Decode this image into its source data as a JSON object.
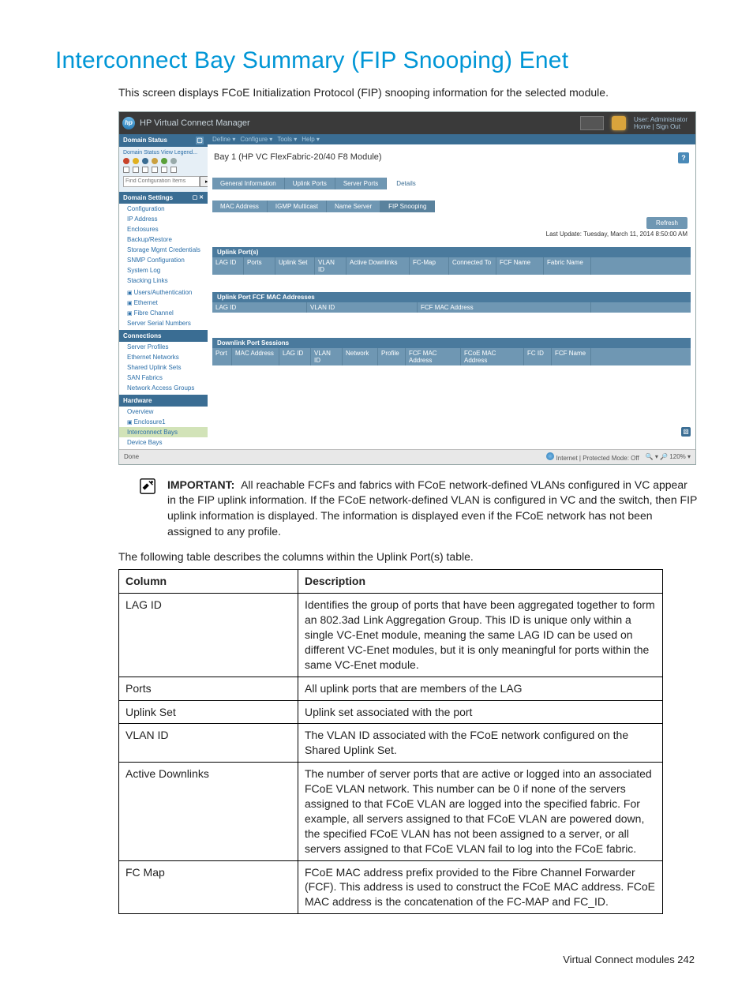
{
  "page": {
    "heading": "Interconnect Bay Summary (FIP Snooping) Enet",
    "intro": "This screen displays FCoE Initialization Protocol (FIP) snooping information for the selected module.",
    "post_intro": "The following table describes the columns within the Uplink Port(s) table.",
    "footer": "Virtual Connect modules   242"
  },
  "colors": {
    "heading": "#0096d6",
    "hp_blue": "#3a6d93",
    "tab_blue": "#6f97b3",
    "sidebar_link": "#2a6ea8"
  },
  "shot": {
    "app_title": "HP Virtual Connect Manager",
    "user_line1": "User: Administrator",
    "user_line2": "Home  |  Sign Out",
    "menus": [
      "Define ▾",
      "Configure ▾",
      "Tools ▾",
      "Help ▾"
    ],
    "bay_title": "Bay 1 (HP VC FlexFabric-20/40 F8 Module)",
    "tabs": [
      "General Information",
      "Uplink Ports",
      "Server Ports"
    ],
    "tab_plain": "Details",
    "subtabs": [
      "MAC Address",
      "IGMP Multicast",
      "Name Server",
      "FIP Snooping"
    ],
    "subtab_active_index": 3,
    "refresh_label": "Refresh",
    "last_update": "Last Update: Tuesday, March 11, 2014 8:50:00 AM",
    "section1_title": "Uplink Port(s)",
    "section1_cols": [
      "LAG ID",
      "Ports",
      "Uplink Set",
      "VLAN ID",
      "Active Downlinks",
      "FC-Map",
      "Connected To",
      "FCF Name",
      "Fabric Name"
    ],
    "section1_widths": [
      40,
      40,
      50,
      40,
      80,
      50,
      60,
      60,
      60
    ],
    "section2_title": "Uplink Port FCF MAC Addresses",
    "section2_cols": [
      "LAG ID",
      "VLAN ID",
      "FCF MAC Address"
    ],
    "section2_widths": [
      120,
      140,
      220
    ],
    "section3_title": "Downlink Port Sessions",
    "section3_cols": [
      "Port",
      "MAC Address",
      "LAG ID",
      "VLAN ID",
      "Network",
      "Profile",
      "FCF MAC Address",
      "FCoE MAC Address",
      "FC ID",
      "FCF Name"
    ],
    "section3_widths": [
      25,
      60,
      40,
      40,
      45,
      35,
      70,
      80,
      35,
      50
    ],
    "status_left": "Done",
    "status_mid": "Internet | Protected Mode: Off",
    "status_right": "🔍 ▾   🔎 120%  ▾",
    "sidebar": {
      "s1_title": "Domain Status",
      "legend_link": "Domain Status   View Legend...",
      "search_placeholder": "Find Configuration Items",
      "s2_title": "Domain Settings",
      "s2_items": [
        "Configuration",
        "IP Address",
        "Enclosures",
        "Backup/Restore",
        "Storage Mgmt Credentials",
        "SNMP Configuration",
        "System Log",
        "Stacking Links"
      ],
      "s3_items_icon": [
        "Users/Authentication",
        "Ethernet",
        "Fibre Channel"
      ],
      "s3_item_plain": "Server Serial Numbers",
      "s4_title": "Connections",
      "s4_items": [
        "Server Profiles",
        "Ethernet Networks",
        "Shared Uplink Sets",
        "SAN Fabrics",
        "Network Access Groups"
      ],
      "s5_title": "Hardware",
      "s5_items": [
        "Overview"
      ],
      "s5_item_icon": "Enclosure1",
      "s5_item_active": "Interconnect Bays",
      "s5_item_last": "Device Bays"
    }
  },
  "note": {
    "label": "IMPORTANT:",
    "text": "All reachable FCFs and fabrics with FCoE network-defined VLANs configured in VC appear in the FIP uplink information. If the FCoE network-defined VLAN is configured in VC and the switch, then FIP uplink information is displayed. The information is displayed even if the FCoE network has not been assigned to any profile."
  },
  "table": {
    "headers": [
      "Column",
      "Description"
    ],
    "rows": [
      [
        "LAG ID",
        "Identifies the group of ports that have been aggregated together to form an 802.3ad Link Aggregation Group. This ID is unique only within a single VC-Enet module, meaning the same LAG ID can be used on different VC-Enet modules, but it is only meaningful for ports within the same VC-Enet module."
      ],
      [
        "Ports",
        "All uplink ports that are members of the LAG"
      ],
      [
        "Uplink Set",
        "Uplink set associated with the port"
      ],
      [
        "VLAN ID",
        "The VLAN ID associated with the FCoE network configured on the Shared Uplink Set."
      ],
      [
        "Active Downlinks",
        "The number of server ports that are active or logged into an associated FCoE VLAN network. This number can be 0 if none of the servers assigned to that FCoE VLAN are logged into the specified fabric. For example, all servers assigned to that FCoE VLAN are powered down, the specified FCoE VLAN has not been assigned to a server, or all servers assigned to that FCoE VLAN fail to log into the FCoE fabric."
      ],
      [
        "FC Map",
        "FCoE MAC address prefix provided to the Fibre Channel Forwarder (FCF). This address is used to construct the FCoE MAC address. FCoE MAC address is the concatenation of the FC-MAP and FC_ID."
      ]
    ]
  }
}
